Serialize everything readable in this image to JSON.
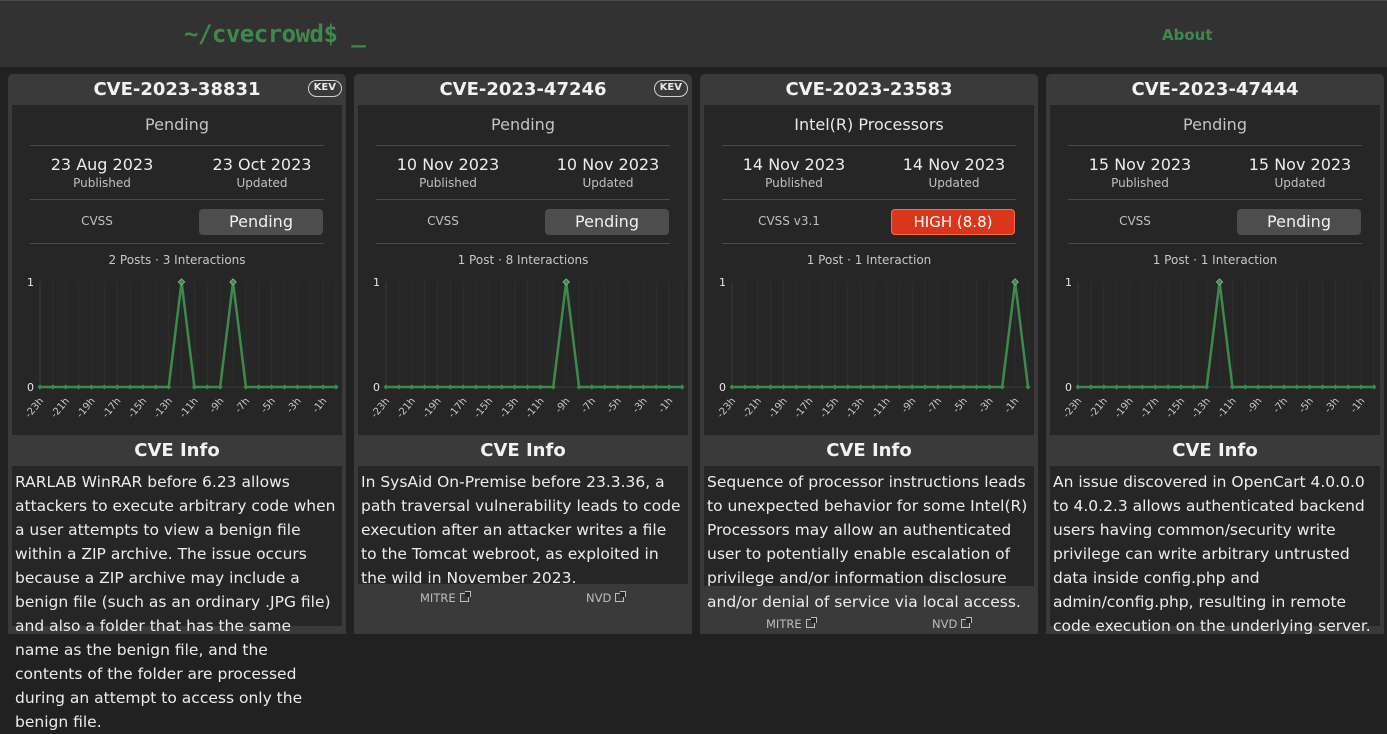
{
  "header": {
    "logo": "~/cvecrowd$ _",
    "about": "About"
  },
  "common": {
    "published_label": "Published",
    "updated_label": "Updated",
    "info_title": "CVE Info",
    "mitre": "MITRE",
    "nvd": "NVD"
  },
  "cards": [
    {
      "id": "CVE-2023-38831",
      "kev": "KEV",
      "vendor": "Pending",
      "published": "23 Aug 2023",
      "updated": "23 Oct 2023",
      "cvss_label": "CVSS",
      "cvss_value": "Pending",
      "severity": "pending",
      "posts": "2 Posts · 3 Interactions",
      "description": "RARLAB WinRAR before 6.23 allows attackers to execute arbitrary code when a user attempts to view a benign file within a ZIP archive. The issue occurs because a ZIP archive may include a benign file (such as an ordinary .JPG file) and also a folder that has the same name as the benign file, and the contents of the folder are processed during an attempt to access only the benign file."
    },
    {
      "id": "CVE-2023-47246",
      "kev": "KEV",
      "vendor": "Pending",
      "published": "10 Nov 2023",
      "updated": "10 Nov 2023",
      "cvss_label": "CVSS",
      "cvss_value": "Pending",
      "severity": "pending",
      "posts": "1 Post · 8 Interactions",
      "description": "In SysAid On-Premise before 23.3.36, a path traversal vulnerability leads to code execution after an attacker writes a file to the Tomcat webroot, as exploited in the wild in November 2023."
    },
    {
      "id": "CVE-2023-23583",
      "kev": "",
      "vendor": "Intel(R) Processors",
      "published": "14 Nov 2023",
      "updated": "14 Nov 2023",
      "cvss_label": "CVSS v3.1",
      "cvss_value": "HIGH (8.8)",
      "severity": "high",
      "posts": "1 Post · 1 Interaction",
      "description": "Sequence of processor instructions leads to unexpected behavior for some Intel(R) Processors may allow an authenticated user to potentially enable escalation of privilege and/or information disclosure and/or denial of service via local access."
    },
    {
      "id": "CVE-2023-47444",
      "kev": "",
      "vendor": "Pending",
      "published": "15 Nov 2023",
      "updated": "15 Nov 2023",
      "cvss_label": "CVSS",
      "cvss_value": "Pending",
      "severity": "pending",
      "posts": "1 Post · 1 Interaction",
      "description": "An issue discovered in OpenCart 4.0.0.0 to 4.0.2.3 allows authenticated backend users having common/security write privilege can write arbitrary untrusted data inside config.php and admin/config.php, resulting in remote code execution on the underlying server."
    }
  ],
  "chart_data": [
    {
      "type": "line",
      "x": [
        "-23h",
        "-22h",
        "-21h",
        "-20h",
        "-19h",
        "-18h",
        "-17h",
        "-16h",
        "-15h",
        "-14h",
        "-13h",
        "-12h",
        "-11h",
        "-10h",
        "-9h",
        "-8h",
        "-7h",
        "-6h",
        "-5h",
        "-4h",
        "-3h",
        "-2h",
        "-1h",
        "0h"
      ],
      "x_tick_labels": [
        "-23h",
        "-21h",
        "-19h",
        "-17h",
        "-15h",
        "-13h",
        "-11h",
        "-9h",
        "-7h",
        "-5h",
        "-3h",
        "-1h"
      ],
      "values": [
        0,
        0,
        0,
        0,
        0,
        0,
        0,
        0,
        0,
        0,
        0,
        1,
        0,
        0,
        0,
        1,
        0,
        0,
        0,
        0,
        0,
        0,
        0,
        0
      ],
      "ylim": [
        0,
        1
      ],
      "yticks": [
        "0",
        "1"
      ],
      "color": "#3d8a4c"
    },
    {
      "type": "line",
      "x": [
        "-23h",
        "-22h",
        "-21h",
        "-20h",
        "-19h",
        "-18h",
        "-17h",
        "-16h",
        "-15h",
        "-14h",
        "-13h",
        "-12h",
        "-11h",
        "-10h",
        "-9h",
        "-8h",
        "-7h",
        "-6h",
        "-5h",
        "-4h",
        "-3h",
        "-2h",
        "-1h",
        "0h"
      ],
      "x_tick_labels": [
        "-23h",
        "-21h",
        "-19h",
        "-17h",
        "-15h",
        "-13h",
        "-11h",
        "-9h",
        "-7h",
        "-5h",
        "-3h",
        "-1h"
      ],
      "values": [
        0,
        0,
        0,
        0,
        0,
        0,
        0,
        0,
        0,
        0,
        0,
        0,
        0,
        0,
        1,
        0,
        0,
        0,
        0,
        0,
        0,
        0,
        0,
        0
      ],
      "ylim": [
        0,
        1
      ],
      "yticks": [
        "0",
        "1"
      ],
      "color": "#3d8a4c"
    },
    {
      "type": "line",
      "x": [
        "-23h",
        "-22h",
        "-21h",
        "-20h",
        "-19h",
        "-18h",
        "-17h",
        "-16h",
        "-15h",
        "-14h",
        "-13h",
        "-12h",
        "-11h",
        "-10h",
        "-9h",
        "-8h",
        "-7h",
        "-6h",
        "-5h",
        "-4h",
        "-3h",
        "-2h",
        "-1h",
        "0h"
      ],
      "x_tick_labels": [
        "-23h",
        "-21h",
        "-19h",
        "-17h",
        "-15h",
        "-13h",
        "-11h",
        "-9h",
        "-7h",
        "-5h",
        "-3h",
        "-1h"
      ],
      "values": [
        0,
        0,
        0,
        0,
        0,
        0,
        0,
        0,
        0,
        0,
        0,
        0,
        0,
        0,
        0,
        0,
        0,
        0,
        0,
        0,
        0,
        0,
        1,
        0
      ],
      "ylim": [
        0,
        1
      ],
      "yticks": [
        "0",
        "1"
      ],
      "color": "#3d8a4c"
    },
    {
      "type": "line",
      "x": [
        "-23h",
        "-22h",
        "-21h",
        "-20h",
        "-19h",
        "-18h",
        "-17h",
        "-16h",
        "-15h",
        "-14h",
        "-13h",
        "-12h",
        "-11h",
        "-10h",
        "-9h",
        "-8h",
        "-7h",
        "-6h",
        "-5h",
        "-4h",
        "-3h",
        "-2h",
        "-1h",
        "0h"
      ],
      "x_tick_labels": [
        "-23h",
        "-21h",
        "-19h",
        "-17h",
        "-15h",
        "-13h",
        "-11h",
        "-9h",
        "-7h",
        "-5h",
        "-3h",
        "-1h"
      ],
      "values": [
        0,
        0,
        0,
        0,
        0,
        0,
        0,
        0,
        0,
        0,
        0,
        1,
        0,
        0,
        0,
        0,
        0,
        0,
        0,
        0,
        0,
        0,
        0,
        0
      ],
      "ylim": [
        0,
        1
      ],
      "yticks": [
        "0",
        "1"
      ],
      "color": "#3d8a4c"
    }
  ]
}
